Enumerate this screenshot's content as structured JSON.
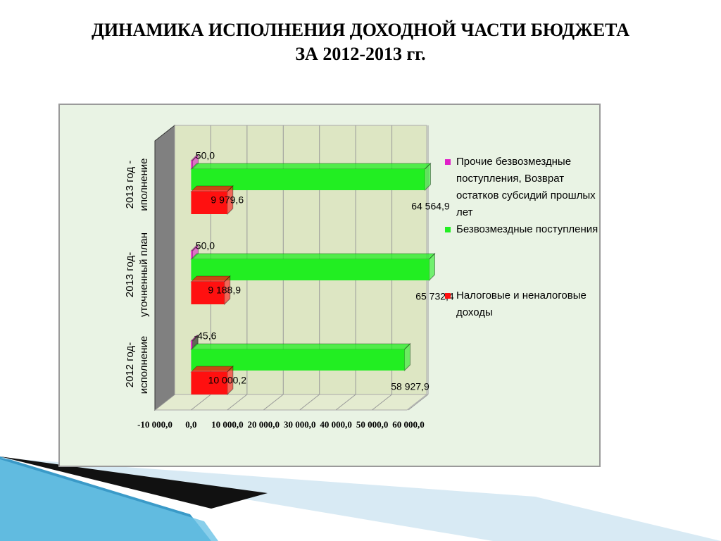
{
  "chart_data": {
    "type": "bar",
    "orientation": "horizontal",
    "title": "ДИНАМИКА ИСПОЛНЕНИЯ ДОХОДНОЙ ЧАСТИ БЮДЖЕТА",
    "subtitle": "ЗА 2012-2013 гг.",
    "categories": [
      "2012 год-исполнение",
      "2013 год-уточненный план",
      "2013 год - иполнение"
    ],
    "series": [
      {
        "name": "Прочие безвозмездные поступления, Возврат остатков субсидий прошлых лет",
        "color": "#e020c8",
        "values": [
          -45.6,
          50.0,
          50.0
        ],
        "value_labels": [
          "-45,6",
          "50,0",
          "50,0"
        ]
      },
      {
        "name": "Безвозмездные поступления",
        "color": "#22ee22",
        "values": [
          58927.9,
          65732.4,
          64564.9
        ],
        "value_labels": [
          "58 927,9",
          "65 732,4",
          "64 564,9"
        ]
      },
      {
        "name": "Налоговые и неналоговые доходы",
        "color": "#ff1010",
        "values": [
          10000.2,
          9188.9,
          9979.6
        ],
        "value_labels": [
          "10 000,2",
          "9 188,9",
          "9 979,6"
        ]
      }
    ],
    "xlim": [
      -10000,
      60000
    ],
    "xticks": [
      {
        "value": -10000,
        "label": "-10 000,0"
      },
      {
        "value": 0,
        "label": "0,0"
      },
      {
        "value": 10000,
        "label": "10 000,0"
      },
      {
        "value": 20000,
        "label": "20 000,0"
      },
      {
        "value": 30000,
        "label": "30 000,0"
      },
      {
        "value": 40000,
        "label": "40 000,0"
      },
      {
        "value": 50000,
        "label": "50 000,0"
      },
      {
        "value": 60000,
        "label": "60 000,0"
      }
    ],
    "grid": true,
    "legend": "right"
  }
}
